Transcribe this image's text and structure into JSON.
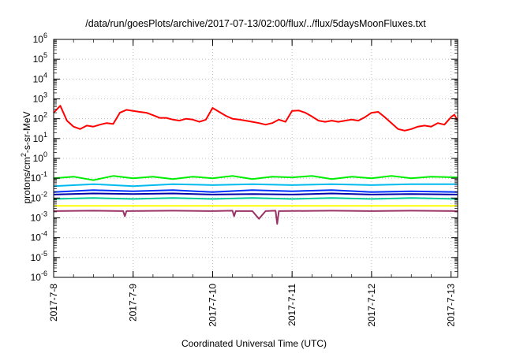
{
  "chart_data": {
    "type": "line",
    "title": "/data/run/goesPlots/archive/2017-07-13/02:00/flux/../flux/5daysMoonFluxes.txt",
    "xlabel": "Coordinated Universal Time (UTC)",
    "ylabel_base": "protons/cm",
    "ylabel_sup": "2",
    "ylabel_rest": "-s-sr-MeV",
    "yscale": "log",
    "ylim": [
      1e-06,
      1000000.0
    ],
    "xlim": [
      "2017-07-08 00:00",
      "2017-07-13 02:00"
    ],
    "grid": true,
    "x_ticks": [
      "2017-7-8",
      "2017-7-9",
      "2017-7-10",
      "2017-7-11",
      "2017-7-12",
      "2017-7-13"
    ],
    "y_ticks": [
      {
        "base": "10",
        "exp": "-6"
      },
      {
        "base": "10",
        "exp": "-5"
      },
      {
        "base": "10",
        "exp": "-4"
      },
      {
        "base": "10",
        "exp": "-3"
      },
      {
        "base": "10",
        "exp": "-2"
      },
      {
        "base": "10",
        "exp": "-1"
      },
      {
        "base": "10",
        "exp": "0"
      },
      {
        "base": "10",
        "exp": "1"
      },
      {
        "base": "10",
        "exp": "2"
      },
      {
        "base": "10",
        "exp": "3"
      },
      {
        "base": "10",
        "exp": "4"
      },
      {
        "base": "10",
        "exp": "5"
      },
      {
        "base": "10",
        "exp": "6"
      }
    ],
    "series": [
      {
        "color": "#ff0000",
        "points": [
          [
            "2017-07-08 00:00",
            200
          ],
          [
            "2017-07-08 02:00",
            450
          ],
          [
            "2017-07-08 04:00",
            80
          ],
          [
            "2017-07-08 06:00",
            40
          ],
          [
            "2017-07-08 08:00",
            30
          ],
          [
            "2017-07-08 10:00",
            45
          ],
          [
            "2017-07-08 12:00",
            40
          ],
          [
            "2017-07-08 14:00",
            50
          ],
          [
            "2017-07-08 16:00",
            60
          ],
          [
            "2017-07-08 18:00",
            55
          ],
          [
            "2017-07-08 20:00",
            200
          ],
          [
            "2017-07-08 22:00",
            280
          ],
          [
            "2017-07-09 00:00",
            250
          ],
          [
            "2017-07-09 02:00",
            220
          ],
          [
            "2017-07-09 04:00",
            200
          ],
          [
            "2017-07-09 06:00",
            150
          ],
          [
            "2017-07-09 08:00",
            110
          ],
          [
            "2017-07-09 10:00",
            110
          ],
          [
            "2017-07-09 12:00",
            90
          ],
          [
            "2017-07-09 14:00",
            80
          ],
          [
            "2017-07-09 16:00",
            100
          ],
          [
            "2017-07-09 18:00",
            90
          ],
          [
            "2017-07-09 20:00",
            70
          ],
          [
            "2017-07-09 22:00",
            90
          ],
          [
            "2017-07-10 00:00",
            350
          ],
          [
            "2017-07-10 02:00",
            220
          ],
          [
            "2017-07-10 04:00",
            140
          ],
          [
            "2017-07-10 06:00",
            100
          ],
          [
            "2017-07-10 08:00",
            90
          ],
          [
            "2017-07-10 10:00",
            80
          ],
          [
            "2017-07-10 12:00",
            70
          ],
          [
            "2017-07-10 14:00",
            60
          ],
          [
            "2017-07-10 16:00",
            50
          ],
          [
            "2017-07-10 18:00",
            60
          ],
          [
            "2017-07-10 20:00",
            90
          ],
          [
            "2017-07-10 22:00",
            70
          ],
          [
            "2017-07-11 00:00",
            250
          ],
          [
            "2017-07-11 02:00",
            260
          ],
          [
            "2017-07-11 04:00",
            200
          ],
          [
            "2017-07-11 06:00",
            130
          ],
          [
            "2017-07-11 08:00",
            80
          ],
          [
            "2017-07-11 10:00",
            70
          ],
          [
            "2017-07-11 12:00",
            80
          ],
          [
            "2017-07-11 14:00",
            70
          ],
          [
            "2017-07-11 16:00",
            80
          ],
          [
            "2017-07-11 18:00",
            90
          ],
          [
            "2017-07-11 20:00",
            80
          ],
          [
            "2017-07-11 22:00",
            120
          ],
          [
            "2017-07-12 00:00",
            200
          ],
          [
            "2017-07-12 02:00",
            220
          ],
          [
            "2017-07-12 04:00",
            120
          ],
          [
            "2017-07-12 06:00",
            60
          ],
          [
            "2017-07-12 08:00",
            30
          ],
          [
            "2017-07-12 10:00",
            25
          ],
          [
            "2017-07-12 12:00",
            30
          ],
          [
            "2017-07-12 14:00",
            40
          ],
          [
            "2017-07-12 16:00",
            45
          ],
          [
            "2017-07-12 18:00",
            40
          ],
          [
            "2017-07-12 20:00",
            60
          ],
          [
            "2017-07-12 22:00",
            50
          ],
          [
            "2017-07-13 00:00",
            120
          ],
          [
            "2017-07-13 01:00",
            160
          ],
          [
            "2017-07-13 02:00",
            80
          ]
        ]
      },
      {
        "color": "#00ee00",
        "points": [
          [
            "2017-07-08 00:00",
            0.1
          ],
          [
            "2017-07-08 06:00",
            0.12
          ],
          [
            "2017-07-08 12:00",
            0.08
          ],
          [
            "2017-07-08 18:00",
            0.13
          ],
          [
            "2017-07-09 00:00",
            0.1
          ],
          [
            "2017-07-09 06:00",
            0.12
          ],
          [
            "2017-07-09 12:00",
            0.09
          ],
          [
            "2017-07-09 18:00",
            0.12
          ],
          [
            "2017-07-10 00:00",
            0.1
          ],
          [
            "2017-07-10 06:00",
            0.13
          ],
          [
            "2017-07-10 12:00",
            0.09
          ],
          [
            "2017-07-10 18:00",
            0.12
          ],
          [
            "2017-07-11 00:00",
            0.11
          ],
          [
            "2017-07-11 06:00",
            0.13
          ],
          [
            "2017-07-11 12:00",
            0.09
          ],
          [
            "2017-07-11 18:00",
            0.12
          ],
          [
            "2017-07-12 00:00",
            0.1
          ],
          [
            "2017-07-12 06:00",
            0.13
          ],
          [
            "2017-07-12 12:00",
            0.1
          ],
          [
            "2017-07-12 18:00",
            0.12
          ],
          [
            "2017-07-13 02:00",
            0.11
          ]
        ]
      },
      {
        "color": "#00bbee",
        "points": [
          [
            "2017-07-08 00:00",
            0.04
          ],
          [
            "2017-07-08 12:00",
            0.05
          ],
          [
            "2017-07-09 00:00",
            0.04
          ],
          [
            "2017-07-09 12:00",
            0.05
          ],
          [
            "2017-07-10 00:00",
            0.045
          ],
          [
            "2017-07-10 12:00",
            0.05
          ],
          [
            "2017-07-11 00:00",
            0.045
          ],
          [
            "2017-07-11 12:00",
            0.05
          ],
          [
            "2017-07-12 00:00",
            0.045
          ],
          [
            "2017-07-12 12:00",
            0.05
          ],
          [
            "2017-07-13 02:00",
            0.05
          ]
        ]
      },
      {
        "color": "#0033ff",
        "points": [
          [
            "2017-07-08 00:00",
            0.02
          ],
          [
            "2017-07-08 12:00",
            0.025
          ],
          [
            "2017-07-09 00:00",
            0.022
          ],
          [
            "2017-07-09 12:00",
            0.025
          ],
          [
            "2017-07-10 00:00",
            0.02
          ],
          [
            "2017-07-10 12:00",
            0.025
          ],
          [
            "2017-07-11 00:00",
            0.022
          ],
          [
            "2017-07-11 12:00",
            0.025
          ],
          [
            "2017-07-12 00:00",
            0.02
          ],
          [
            "2017-07-12 12:00",
            0.022
          ],
          [
            "2017-07-13 02:00",
            0.02
          ]
        ]
      },
      {
        "color": "#0000aa",
        "points": [
          [
            "2017-07-08 00:00",
            0.015
          ],
          [
            "2017-07-08 12:00",
            0.017
          ],
          [
            "2017-07-09 00:00",
            0.016
          ],
          [
            "2017-07-09 12:00",
            0.017
          ],
          [
            "2017-07-10 00:00",
            0.015
          ],
          [
            "2017-07-10 12:00",
            0.016
          ],
          [
            "2017-07-11 00:00",
            0.015
          ],
          [
            "2017-07-11 12:00",
            0.017
          ],
          [
            "2017-07-12 00:00",
            0.015
          ],
          [
            "2017-07-12 12:00",
            0.016
          ],
          [
            "2017-07-13 02:00",
            0.015
          ]
        ]
      },
      {
        "color": "#00cc99",
        "points": [
          [
            "2017-07-08 00:00",
            0.009
          ],
          [
            "2017-07-08 12:00",
            0.01
          ],
          [
            "2017-07-09 00:00",
            0.009
          ],
          [
            "2017-07-09 12:00",
            0.01
          ],
          [
            "2017-07-10 00:00",
            0.009
          ],
          [
            "2017-07-10 12:00",
            0.01
          ],
          [
            "2017-07-11 00:00",
            0.009
          ],
          [
            "2017-07-11 12:00",
            0.01
          ],
          [
            "2017-07-12 00:00",
            0.009
          ],
          [
            "2017-07-12 12:00",
            0.01
          ],
          [
            "2017-07-13 02:00",
            0.009
          ]
        ]
      },
      {
        "color": "#ffff00",
        "points": [
          [
            "2017-07-08 00:00",
            0.004
          ],
          [
            "2017-07-09 00:00",
            0.004
          ],
          [
            "2017-07-10 00:00",
            0.004
          ],
          [
            "2017-07-11 00:00",
            0.004
          ],
          [
            "2017-07-12 00:00",
            0.004
          ],
          [
            "2017-07-13 02:00",
            0.004
          ]
        ]
      },
      {
        "color": "#993366",
        "points": [
          [
            "2017-07-08 00:00",
            0.0022
          ],
          [
            "2017-07-08 12:00",
            0.0023
          ],
          [
            "2017-07-08 21:00",
            0.0022
          ],
          [
            "2017-07-08 21:30",
            0.0012
          ],
          [
            "2017-07-08 22:00",
            0.0022
          ],
          [
            "2017-07-09 12:00",
            0.0023
          ],
          [
            "2017-07-10 00:00",
            0.0022
          ],
          [
            "2017-07-10 06:00",
            0.0023
          ],
          [
            "2017-07-10 06:30",
            0.0012
          ],
          [
            "2017-07-10 07:00",
            0.0022
          ],
          [
            "2017-07-10 12:00",
            0.0022
          ],
          [
            "2017-07-10 14:00",
            0.0009
          ],
          [
            "2017-07-10 16:00",
            0.0022
          ],
          [
            "2017-07-10 19:00",
            0.0023
          ],
          [
            "2017-07-10 19:30",
            0.0005
          ],
          [
            "2017-07-10 20:00",
            0.0022
          ],
          [
            "2017-07-11 12:00",
            0.0023
          ],
          [
            "2017-07-12 00:00",
            0.0022
          ],
          [
            "2017-07-12 12:00",
            0.0023
          ],
          [
            "2017-07-13 02:00",
            0.0022
          ]
        ]
      }
    ]
  }
}
